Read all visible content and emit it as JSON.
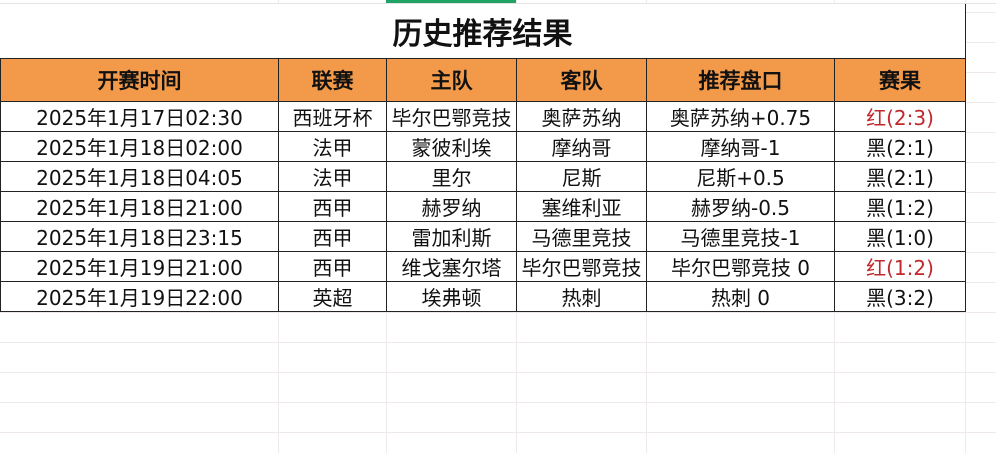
{
  "title": "历史推荐结果",
  "headers": [
    "开赛时间",
    "联赛",
    "主队",
    "客队",
    "推荐盘口",
    "赛果"
  ],
  "rows": [
    {
      "time": "2025年1月17日02:30",
      "league": "西班牙杯",
      "home": "毕尔巴鄂竞技",
      "away": "奥萨苏纳",
      "pick": "奥萨苏纳+0.75",
      "result": "红(2:3)",
      "result_color": "red"
    },
    {
      "time": "2025年1月18日02:00",
      "league": "法甲",
      "home": "蒙彼利埃",
      "away": "摩纳哥",
      "pick": "摩纳哥-1",
      "result": "黑(2:1)",
      "result_color": "black"
    },
    {
      "time": "2025年1月18日04:05",
      "league": "法甲",
      "home": "里尔",
      "away": "尼斯",
      "pick": "尼斯+0.5",
      "result": "黑(2:1)",
      "result_color": "black"
    },
    {
      "time": "2025年1月18日21:00",
      "league": "西甲",
      "home": "赫罗纳",
      "away": "塞维利亚",
      "pick": "赫罗纳-0.5",
      "result": "黑(1:2)",
      "result_color": "black"
    },
    {
      "time": "2025年1月18日23:15",
      "league": "西甲",
      "home": "雷加利斯",
      "away": "马德里竞技",
      "pick": "马德里竞技-1",
      "result": "黑(1:0)",
      "result_color": "black"
    },
    {
      "time": "2025年1月19日21:00",
      "league": "西甲",
      "home": "维戈塞尔塔",
      "away": "毕尔巴鄂竞技",
      "pick": "毕尔巴鄂竞技 0",
      "result": "红(1:2)",
      "result_color": "red"
    },
    {
      "time": "2025年1月19日22:00",
      "league": "英超",
      "home": "埃弗顿",
      "away": "热刺",
      "pick": "热刺 0",
      "result": "黑(3:2)",
      "result_color": "black"
    }
  ],
  "colors": {
    "header_bg": "#f39a4a",
    "red": "#c0282c",
    "selection": "#21a366"
  }
}
